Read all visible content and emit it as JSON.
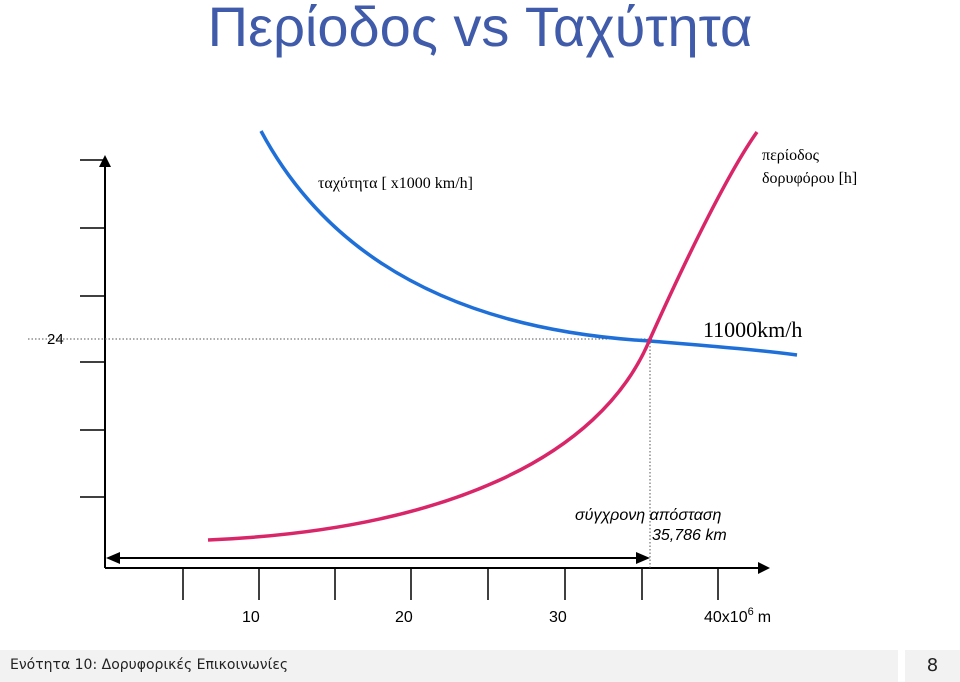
{
  "title": "Περίοδος vs Ταχύτητα",
  "footer": {
    "text": "Ενότητα 10: Δορυφορικές Επικοινωνίες",
    "page": "8"
  },
  "colors": {
    "title": "#3F5BA9",
    "speed_curve": "#1F6FD8",
    "period_curve": "#D92669",
    "axis": "#000000"
  },
  "chart_data": {
    "type": "line",
    "x_axis": {
      "tick_labels": [
        "10",
        "20",
        "30",
        "40x10"
      ],
      "unit_suffix": "m",
      "exponent": "6"
    },
    "y_axis": {
      "marked_value": "24"
    },
    "series": [
      {
        "name": "ταχύτητα [ x1000 km/h]",
        "color": "#1F6FD8",
        "x": [
          10,
          14,
          18,
          22,
          26,
          30,
          35.786,
          40
        ],
        "y": [
          52,
          41,
          35,
          31,
          28,
          26,
          24,
          22.5
        ]
      },
      {
        "name": "περίοδος δορυφόρου [h]",
        "color": "#D92669",
        "x": [
          10,
          14,
          18,
          22,
          26,
          30,
          35.786,
          40
        ],
        "y": [
          -6,
          -5,
          -3.5,
          -1,
          3,
          9,
          24,
          50
        ]
      }
    ],
    "annotations": {
      "intersection_speed": "11000km/h",
      "distance_label": "σύγχρονη απόσταση",
      "distance_value": "35,786 km"
    }
  }
}
